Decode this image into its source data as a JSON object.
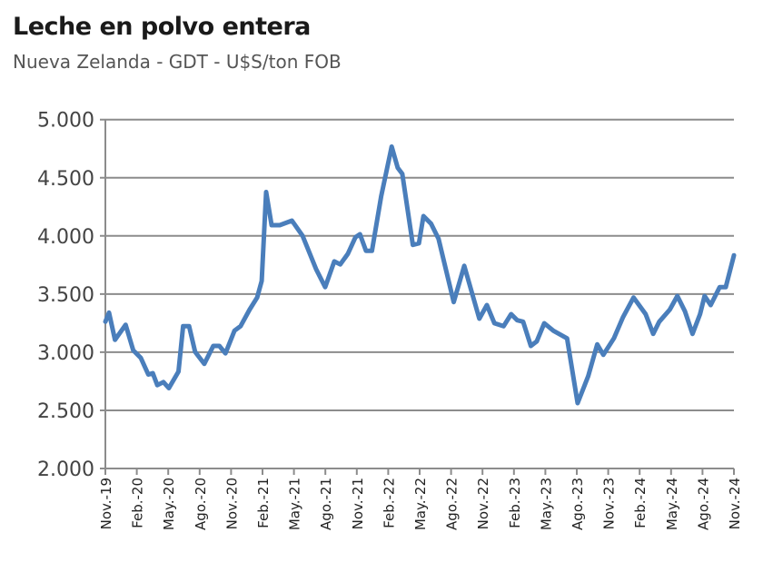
{
  "chart_data": {
    "type": "line",
    "title": "Leche en polvo entera",
    "subtitle": "Nueva Zelanda - GDT - U$S/ton FOB",
    "xlabel": "",
    "ylabel": "",
    "ylim": [
      2000,
      5000
    ],
    "yticks": [
      2000,
      2500,
      3000,
      3500,
      4000,
      4500,
      5000
    ],
    "ytick_labels": [
      "2.000",
      "2.500",
      "3.000",
      "3.500",
      "4.000",
      "4.500",
      "5.000"
    ],
    "xtick_labels": [
      "Nov.-19",
      "Feb.-20",
      "May.-20",
      "Ago.-20",
      "Nov.-20",
      "Feb.-21",
      "May.-21",
      "Ago.-21",
      "Nov.-21",
      "Feb.-22",
      "May.-22",
      "Ago.-22",
      "Nov.-22",
      "Feb.-23",
      "May.-23",
      "Ago.-23",
      "Nov.-23",
      "Feb.-24",
      "May.-24",
      "Ago.-24",
      "Nov.-24"
    ],
    "x_unit": "months since Nov-19",
    "grid": true,
    "line_color": "#4a7ebb",
    "series": [
      {
        "name": "Leche en polvo entera",
        "x": [
          0,
          0.35,
          0.92,
          1.93,
          2.66,
          3.38,
          4.1,
          4.53,
          4.96,
          5.54,
          6.06,
          6.98,
          7.42,
          7.99,
          8.57,
          9.44,
          10.3,
          10.88,
          11.46,
          12.32,
          12.9,
          13.77,
          14.49,
          14.92,
          15.35,
          15.87,
          16.65,
          17.81,
          18.82,
          20.11,
          20.98,
          21.85,
          22.42,
          23.15,
          23.87,
          24.3,
          24.88,
          25.45,
          26.32,
          27.33,
          27.91,
          28.34,
          29.35,
          29.93,
          30.36,
          31.08,
          31.8,
          33.25,
          34.26,
          35.7,
          36.42,
          37.14,
          38.01,
          38.73,
          39.31,
          39.88,
          40.61,
          41.18,
          41.9,
          42.77,
          44.07,
          45.08,
          46.09,
          46.95,
          47.53,
          48.54,
          49.41,
          50.42,
          51.57,
          52.29,
          52.87,
          53.88,
          54.6,
          55.32,
          56.05,
          56.77,
          57.2,
          57.78,
          58.64,
          59.22,
          60
        ],
        "values": [
          3262,
          3340,
          3106,
          3236,
          3016,
          2951,
          2808,
          2820,
          2717,
          2743,
          2691,
          2834,
          3223,
          3223,
          3003,
          2899,
          3054,
          3054,
          2990,
          3184,
          3223,
          3366,
          3470,
          3612,
          4377,
          4092,
          4092,
          4131,
          4001,
          3716,
          3560,
          3781,
          3755,
          3846,
          3988,
          4014,
          3872,
          3872,
          4339,
          4767,
          4585,
          4533,
          3923,
          3936,
          4170,
          4105,
          3975,
          3431,
          3742,
          3288,
          3405,
          3249,
          3223,
          3327,
          3275,
          3262,
          3054,
          3093,
          3249,
          3184,
          3119,
          2562,
          2795,
          3067,
          2977,
          3119,
          3301,
          3470,
          3327,
          3158,
          3262,
          3366,
          3483,
          3353,
          3158,
          3327,
          3483,
          3405,
          3560,
          3560,
          3833
        ]
      }
    ]
  }
}
